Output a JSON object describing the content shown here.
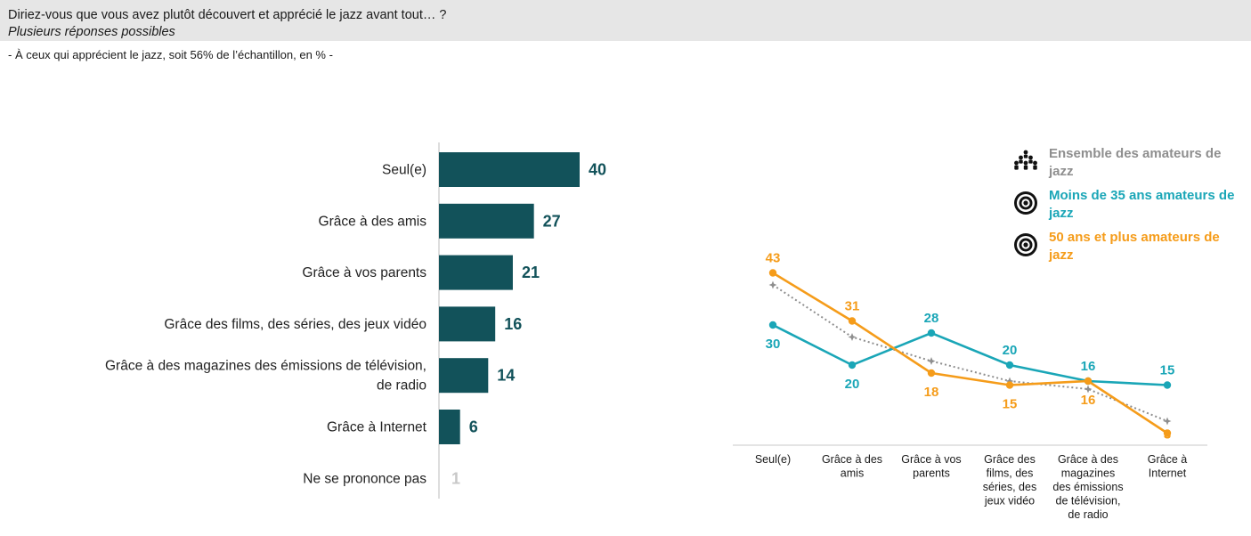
{
  "header": {
    "question": "Diriez-vous que vous avez plutôt découvert et apprécié le jazz avant tout… ?",
    "subtitle": "Plusieurs réponses possibles",
    "base_note": "- À ceux qui apprécient le jazz, soit 56% de l’échantillon, en % -"
  },
  "colors": {
    "bar": "#12525a",
    "bar_muted": "#c8c8c8",
    "teal": "#1aa6b7",
    "orange": "#f59c1a",
    "gray": "#8e8e8e"
  },
  "legend": [
    {
      "label": "Ensemble des amateurs de jazz",
      "icon": "people-group-icon",
      "color": "#8e8e8e"
    },
    {
      "label": "Moins de 35 ans amateurs de jazz",
      "icon": "target-icon",
      "color": "#1aa6b7"
    },
    {
      "label": "50 ans et plus amateurs de jazz",
      "icon": "target-icon",
      "color": "#f59c1a"
    }
  ],
  "chart_data": [
    {
      "type": "bar",
      "orientation": "horizontal",
      "categories": [
        "Seul(e)",
        "Grâce à des amis",
        "Grâce à vos parents",
        "Grâce des films, des séries, des jeux vidéo",
        "Grâce à des magazines des émissions de télévision, de radio",
        "Grâce à Internet",
        "Ne se prononce pas"
      ],
      "values": [
        40,
        27,
        21,
        16,
        14,
        6,
        1
      ],
      "xlim": [
        0,
        40
      ]
    },
    {
      "type": "line",
      "categories": [
        "Seul(e)",
        "Grâce à des amis",
        "Grâce à vos parents",
        "Grâce des films, des séries, des jeux vidéo",
        "Grâce à des magazines des émissions de télévision, de radio",
        "Grâce à Internet"
      ],
      "series": [
        {
          "name": "Ensemble des amateurs de jazz",
          "values": [
            40,
            27,
            21,
            16,
            14,
            6
          ],
          "style": "dotted",
          "labeled": false
        },
        {
          "name": "Moins de 35 ans amateurs de jazz",
          "values": [
            30,
            20,
            28,
            20,
            16,
            15
          ],
          "style": "solid",
          "labeled": true
        },
        {
          "name": "50 ans et plus amateurs de jazz",
          "values": [
            43,
            31,
            18,
            15,
            16,
            3
          ],
          "style": "solid",
          "labeled": true
        }
      ],
      "ylim": [
        0,
        45
      ],
      "grid": false
    }
  ]
}
